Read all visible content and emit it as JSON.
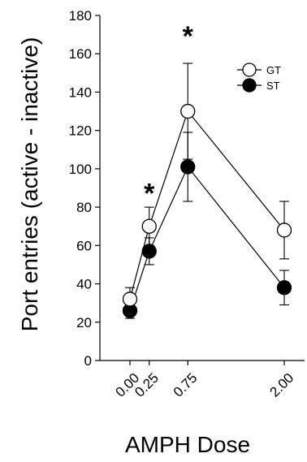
{
  "chart_data": {
    "type": "line",
    "title": "",
    "xlabel": "AMPH Dose",
    "ylabel": "Port entries (active - inactive)",
    "x": [
      0.0,
      0.25,
      0.75,
      2.0
    ],
    "x_tick_labels": [
      "0.00",
      "0.25",
      "0.75",
      "2.00"
    ],
    "xlim": [
      0.0,
      2.0
    ],
    "ylim": [
      0,
      180
    ],
    "y_ticks": [
      0,
      20,
      40,
      60,
      80,
      100,
      120,
      140,
      160,
      180
    ],
    "grid": false,
    "legend_position": "top-right",
    "series": [
      {
        "name": "GT",
        "marker": "open-circle",
        "values": [
          32,
          70,
          130,
          68
        ],
        "error": [
          6,
          10,
          25,
          15
        ]
      },
      {
        "name": "ST",
        "marker": "filled-circle",
        "values": [
          26,
          57,
          101,
          38
        ],
        "error": [
          4,
          7,
          18,
          9
        ]
      }
    ],
    "annotations": [
      {
        "text": "*",
        "x": 0.25,
        "y": 90
      },
      {
        "text": "*",
        "x": 0.75,
        "y": 172
      }
    ]
  }
}
